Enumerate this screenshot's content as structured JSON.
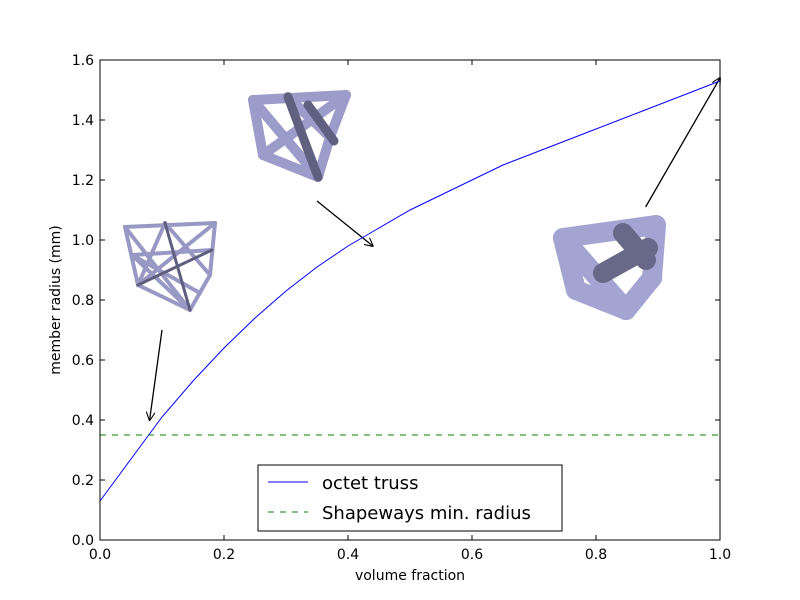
{
  "chart_data": {
    "type": "line",
    "xlabel": "volume fraction",
    "ylabel": "member radius (mm)",
    "xlim": [
      0.0,
      1.0
    ],
    "ylim": [
      0.0,
      1.6
    ],
    "x_ticks": [
      "0.0",
      "0.2",
      "0.4",
      "0.6",
      "0.8",
      "1.0"
    ],
    "y_ticks": [
      "0.0",
      "0.2",
      "0.4",
      "0.6",
      "0.8",
      "1.0",
      "1.2",
      "1.4",
      "1.6"
    ],
    "grid": false,
    "legend_position": "bottom-center",
    "series": [
      {
        "name": "octet truss",
        "style": "solid",
        "color": "#0000ff",
        "x": [
          0.0,
          0.05,
          0.1,
          0.15,
          0.2,
          0.25,
          0.3,
          0.35,
          0.4,
          0.45,
          0.5,
          0.55,
          0.6,
          0.65,
          0.7,
          0.75,
          0.8,
          0.85,
          0.9,
          0.95,
          1.0
        ],
        "y": [
          0.13,
          0.27,
          0.41,
          0.53,
          0.64,
          0.74,
          0.83,
          0.91,
          0.98,
          1.04,
          1.1,
          1.15,
          1.2,
          1.25,
          1.29,
          1.33,
          1.37,
          1.41,
          1.45,
          1.49,
          1.53
        ]
      },
      {
        "name": "Shapeways min. radius",
        "style": "dashed",
        "color": "#008000",
        "x": [
          0.0,
          1.0
        ],
        "y": [
          0.35,
          0.35
        ]
      }
    ],
    "annotations": [
      {
        "name": "truss-thin",
        "from": [
          0.1,
          0.7
        ],
        "to": [
          0.08,
          0.4
        ],
        "color": "#000000"
      },
      {
        "name": "truss-medium",
        "from": [
          0.35,
          1.13
        ],
        "to": [
          0.44,
          0.98
        ],
        "color": "#000000"
      },
      {
        "name": "truss-thick",
        "from": [
          0.88,
          1.11
        ],
        "to": [
          1.0,
          1.54
        ],
        "color": "#000000"
      }
    ]
  }
}
